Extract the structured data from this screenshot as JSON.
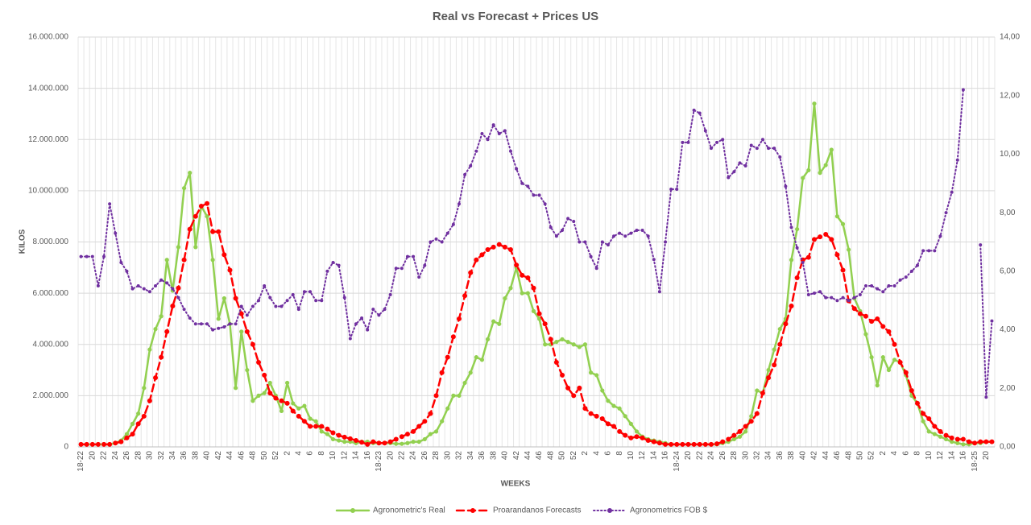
{
  "chart_data": {
    "type": "line",
    "title": "Real vs Forecast + Prices US",
    "x_label": "WEEKS",
    "y_label": "KILOS",
    "categories": [
      "18-22",
      null,
      "20",
      null,
      "22",
      null,
      "24",
      null,
      "26",
      null,
      "28",
      null,
      "30",
      null,
      "32",
      null,
      "34",
      null,
      "36",
      null,
      "38",
      null,
      "40",
      null,
      "42",
      null,
      "44",
      null,
      "46",
      null,
      "48",
      null,
      "50",
      null,
      "52",
      null,
      "2",
      null,
      "4",
      null,
      "6",
      null,
      "8",
      null,
      "10",
      null,
      "12",
      null,
      "14",
      null,
      "16",
      null,
      "18-23",
      null,
      "20",
      null,
      "22",
      null,
      "24",
      null,
      "26",
      null,
      "28",
      null,
      "30",
      null,
      "32",
      null,
      "34",
      null,
      "36",
      null,
      "38",
      null,
      "40",
      null,
      "42",
      null,
      "44",
      null,
      "46",
      null,
      "48",
      null,
      "50",
      null,
      "52",
      null,
      "2",
      null,
      "4",
      null,
      "6",
      null,
      "8",
      null,
      "10",
      null,
      "12",
      null,
      "14",
      null,
      "16",
      null,
      "18-24",
      null,
      "20",
      null,
      "22",
      null,
      "24",
      null,
      "26",
      null,
      "28",
      null,
      "30",
      null,
      "32",
      null,
      "34",
      null,
      "36",
      null,
      "38",
      null,
      "40",
      null,
      "42",
      null,
      "44",
      null,
      "46",
      null,
      "48",
      null,
      "50",
      null,
      "52",
      null,
      "2",
      null,
      "4",
      null,
      "6",
      null,
      "8",
      null,
      "10",
      null,
      "12",
      null,
      "14",
      null,
      "16",
      null,
      "18-25",
      null,
      "20",
      null
    ],
    "ylim": [
      0,
      16000000
    ],
    "yticks": [
      0,
      {
        "value": 2000000,
        "label": "2.000.000"
      },
      {
        "value": 4000000,
        "label": "4.000.000"
      },
      {
        "value": 6000000,
        "label": "6.000.000"
      },
      {
        "value": 8000000,
        "label": "8.000.000"
      },
      {
        "value": 10000000,
        "label": "10.000.000"
      },
      {
        "value": 12000000,
        "label": "12.000.000"
      },
      {
        "value": 14000000,
        "label": "14.000.000"
      },
      {
        "value": 16000000,
        "label": "16.000.000"
      }
    ],
    "y2lim": [
      0,
      14
    ],
    "y2ticks": [
      {
        "value": 0,
        "label": "0,00"
      },
      {
        "value": 2,
        "label": "2,00"
      },
      {
        "value": 4,
        "label": "4,00"
      },
      {
        "value": 6,
        "label": "6,00"
      },
      {
        "value": 8,
        "label": "8,00"
      },
      {
        "value": 10,
        "label": "10,00"
      },
      {
        "value": 12,
        "label": "12,00"
      },
      {
        "value": 14,
        "label": "14,00"
      }
    ],
    "grid": true,
    "legend": "bottom",
    "series": [
      {
        "name": "Agronometric's Real",
        "color": "#92d050",
        "line_style": "solid",
        "values": [
          100000,
          100000,
          100000,
          100000,
          100000,
          100000,
          150000,
          250000,
          500000,
          900000,
          1300000,
          2300000,
          3800000,
          4600000,
          5100000,
          7300000,
          6100000,
          7800000,
          10100000,
          10700000,
          7800000,
          9400000,
          9000000,
          7300000,
          5000000,
          5800000,
          4800000,
          2300000,
          4500000,
          3000000,
          1800000,
          2000000,
          2100000,
          2500000,
          2000000,
          1400000,
          2500000,
          1700000,
          1500000,
          1600000,
          1100000,
          1000000,
          600000,
          500000,
          300000,
          250000,
          200000,
          200000,
          150000,
          200000,
          200000,
          150000,
          150000,
          150000,
          150000,
          120000,
          120000,
          150000,
          200000,
          200000,
          300000,
          500000,
          600000,
          1000000,
          1500000,
          2000000,
          2000000,
          2500000,
          2900000,
          3500000,
          3400000,
          4200000,
          4900000,
          4800000,
          5800000,
          6200000,
          7000000,
          6000000,
          6000000,
          5300000,
          5000000,
          4000000,
          4000000,
          4100000,
          4200000,
          4100000,
          4000000,
          3900000,
          4000000,
          2900000,
          2800000,
          2200000,
          1800000,
          1600000,
          1500000,
          1200000,
          900000,
          600000,
          400000,
          300000,
          250000,
          200000,
          150000,
          100000,
          100000,
          100000,
          100000,
          100000,
          100000,
          100000,
          100000,
          100000,
          150000,
          200000,
          300000,
          400000,
          600000,
          1200000,
          2200000,
          2100000,
          3000000,
          3800000,
          4600000,
          5000000,
          7300000,
          8500000,
          10500000,
          10800000,
          13400000,
          10700000,
          11000000,
          11600000,
          9000000,
          8700000,
          7700000,
          5800000,
          5300000,
          4400000,
          3500000,
          2400000,
          3500000,
          3000000,
          3400000,
          3300000,
          2800000,
          2000000,
          1700000,
          1000000,
          600000,
          500000,
          400000,
          300000,
          200000,
          150000,
          100000,
          100000,
          150000,
          150000,
          200000,
          200000
        ]
      },
      {
        "name": "Proarandanos Forecasts",
        "color": "#ff0000",
        "line_style": "dashed",
        "values": [
          100000,
          100000,
          100000,
          100000,
          100000,
          100000,
          150000,
          200000,
          350000,
          500000,
          900000,
          1200000,
          1800000,
          2700000,
          3500000,
          4500000,
          5500000,
          6200000,
          7300000,
          8500000,
          9000000,
          9400000,
          9500000,
          8400000,
          8400000,
          7500000,
          6900000,
          5800000,
          5200000,
          4500000,
          4000000,
          3300000,
          2800000,
          2100000,
          1900000,
          1800000,
          1700000,
          1400000,
          1200000,
          1000000,
          800000,
          800000,
          800000,
          700000,
          550000,
          450000,
          380000,
          320000,
          250000,
          180000,
          100000,
          200000,
          150000,
          150000,
          200000,
          300000,
          400000,
          500000,
          600000,
          800000,
          1000000,
          1300000,
          2000000,
          2900000,
          3500000,
          4300000,
          5000000,
          5900000,
          6800000,
          7300000,
          7500000,
          7700000,
          7800000,
          7900000,
          7800000,
          7700000,
          7100000,
          6700000,
          6600000,
          6200000,
          5200000,
          4800000,
          4200000,
          3300000,
          2800000,
          2300000,
          2000000,
          2300000,
          1500000,
          1300000,
          1200000,
          1100000,
          900000,
          800000,
          600000,
          450000,
          350000,
          400000,
          350000,
          250000,
          200000,
          150000,
          100000,
          100000,
          100000,
          100000,
          100000,
          100000,
          100000,
          100000,
          100000,
          120000,
          200000,
          300000,
          450000,
          600000,
          800000,
          1000000,
          1300000,
          2100000,
          2700000,
          3200000,
          4000000,
          4800000,
          5500000,
          6600000,
          7300000,
          7400000,
          8100000,
          8200000,
          8300000,
          8100000,
          7500000,
          6900000,
          5700000,
          5400000,
          5200000,
          5100000,
          4900000,
          5000000,
          4700000,
          4500000,
          4000000,
          3300000,
          2900000,
          2200000,
          1700000,
          1300000,
          1100000,
          800000,
          600000,
          450000,
          350000,
          300000,
          300000,
          200000,
          150000,
          200000,
          200000,
          200000
        ]
      },
      {
        "name": "Agronometrics FOB $",
        "color": "#7030a0",
        "line_style": "dotted",
        "axis": "y2",
        "values": [
          6.5,
          6.5,
          6.5,
          5.5,
          6.5,
          8.3,
          7.3,
          6.3,
          6.0,
          5.4,
          5.5,
          5.4,
          5.3,
          5.5,
          5.7,
          5.6,
          5.4,
          5.1,
          4.7,
          4.4,
          4.2,
          4.2,
          4.2,
          4.0,
          4.05,
          4.1,
          4.2,
          4.2,
          4.8,
          4.5,
          4.8,
          5.0,
          5.5,
          5.1,
          4.8,
          4.8,
          5.0,
          5.2,
          4.7,
          5.3,
          5.3,
          5.0,
          5.0,
          6.0,
          6.3,
          6.2,
          5.1,
          3.7,
          4.2,
          4.4,
          4.0,
          4.7,
          4.5,
          4.7,
          5.2,
          6.1,
          6.1,
          6.5,
          6.5,
          5.8,
          6.2,
          7.0,
          7.1,
          7.0,
          7.3,
          7.6,
          8.3,
          9.3,
          9.6,
          10.1,
          10.7,
          10.5,
          11.0,
          10.7,
          10.8,
          10.1,
          9.5,
          9.0,
          8.9,
          8.6,
          8.6,
          8.3,
          7.5,
          7.2,
          7.4,
          7.8,
          7.7,
          7.0,
          7.0,
          6.5,
          6.1,
          7.0,
          6.9,
          7.2,
          7.3,
          7.2,
          7.3,
          7.4,
          7.4,
          7.2,
          6.4,
          5.3,
          7.0,
          8.8,
          8.8,
          10.4,
          10.4,
          11.5,
          11.4,
          10.8,
          10.2,
          10.4,
          10.5,
          9.2,
          9.4,
          9.7,
          9.6,
          10.3,
          10.2,
          10.5,
          10.2,
          10.2,
          9.9,
          8.9,
          7.5,
          6.8,
          6.3,
          5.2,
          5.25,
          5.3,
          5.1,
          5.1,
          5.0,
          5.1,
          5.0,
          5.1,
          5.2,
          5.5,
          5.5,
          5.4,
          5.3,
          5.5,
          5.5,
          5.7,
          5.8,
          6.0,
          6.2,
          6.7,
          6.7,
          6.7,
          7.2,
          8.0,
          8.7,
          9.8,
          12.2,
          null,
          null,
          6.9,
          1.7,
          4.3
        ]
      }
    ]
  }
}
